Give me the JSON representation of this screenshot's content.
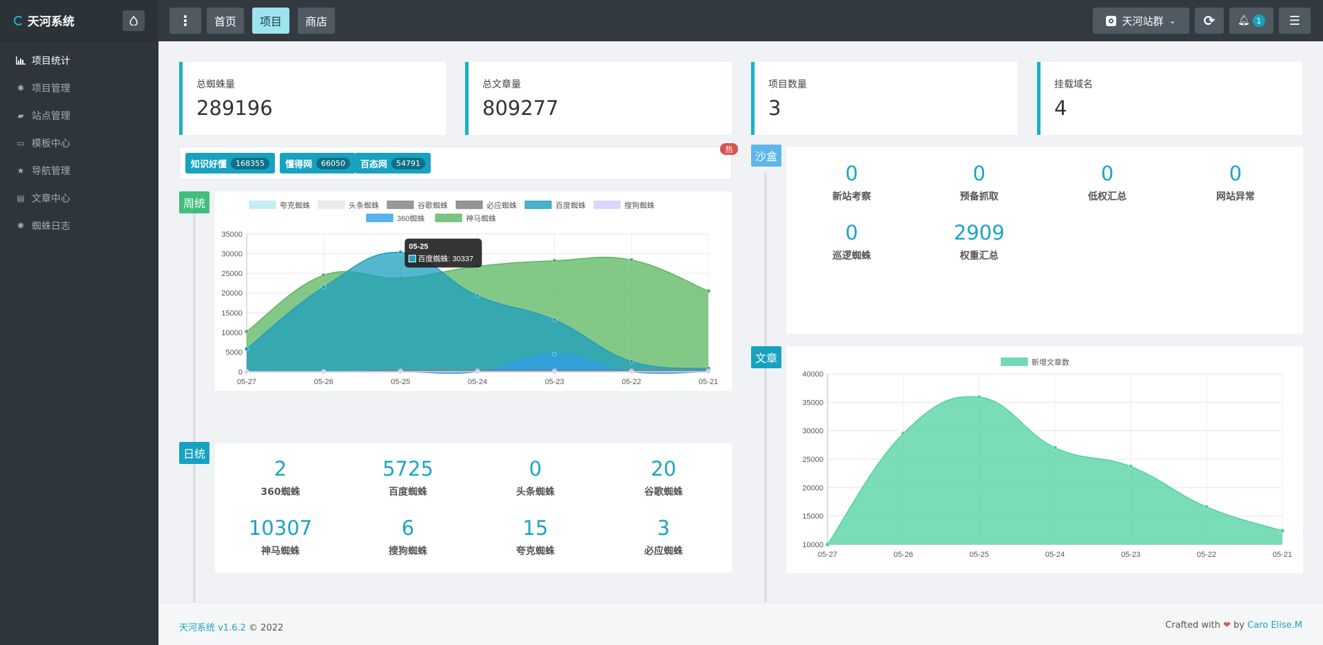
{
  "app": {
    "title": "天河系统"
  },
  "sidebar": {
    "items": [
      {
        "label": "项目统计",
        "icon": "bar-chart-icon",
        "active": true
      },
      {
        "label": "项目管理",
        "icon": "spider-icon"
      },
      {
        "label": "站点管理",
        "icon": "comments-icon"
      },
      {
        "label": "模板中心",
        "icon": "template-icon"
      },
      {
        "label": "导航管理",
        "icon": "star-icon"
      },
      {
        "label": "文章中心",
        "icon": "document-icon"
      },
      {
        "label": "蜘蛛日志",
        "icon": "bug-icon"
      }
    ]
  },
  "topbar": {
    "nav": [
      "首页",
      "项目",
      "商店"
    ],
    "site_group": "天河站群",
    "notify_count": "1"
  },
  "stats": [
    {
      "label": "总蜘蛛量",
      "value": "289196"
    },
    {
      "label": "总文章量",
      "value": "809277"
    },
    {
      "label": "项目数量",
      "value": "3"
    },
    {
      "label": "挂载域名",
      "value": "4"
    }
  ],
  "tags": [
    {
      "name": "知识好懂",
      "count": "168355"
    },
    {
      "name": "懂得网",
      "count": "66050"
    },
    {
      "name": "百态网",
      "count": "54791"
    }
  ],
  "hot_label": "热",
  "sections": {
    "weekly": "周统",
    "daily": "日统",
    "sandbox": "沙盒",
    "articles": "文章"
  },
  "sandbox": [
    {
      "label": "新站考察",
      "value": "0"
    },
    {
      "label": "预备抓取",
      "value": "0"
    },
    {
      "label": "低权汇总",
      "value": "0"
    },
    {
      "label": "网站异常",
      "value": "0"
    },
    {
      "label": "巡逻蜘蛛",
      "value": "0"
    },
    {
      "label": "权重汇总",
      "value": "2909"
    }
  ],
  "daily": [
    {
      "label": "360蜘蛛",
      "value": "2"
    },
    {
      "label": "百度蜘蛛",
      "value": "5725"
    },
    {
      "label": "头条蜘蛛",
      "value": "0"
    },
    {
      "label": "谷歌蜘蛛",
      "value": "20"
    },
    {
      "label": "神马蜘蛛",
      "value": "10307"
    },
    {
      "label": "搜狗蜘蛛",
      "value": "6"
    },
    {
      "label": "夸克蜘蛛",
      "value": "15"
    },
    {
      "label": "必应蜘蛛",
      "value": "3"
    }
  ],
  "chart_data": [
    {
      "type": "area",
      "x": [
        "05-27",
        "05-26",
        "05-25",
        "05-24",
        "05-23",
        "05-22",
        "05-21"
      ],
      "ylim": [
        0,
        35000
      ],
      "yticks": [
        0,
        5000,
        10000,
        15000,
        20000,
        25000,
        30000,
        35000
      ],
      "legend_position": "top",
      "grid": true,
      "series": [
        {
          "name": "夸克蜘蛛",
          "color": "#b9e9f1",
          "values": [
            0,
            0,
            0,
            0,
            0,
            0,
            0
          ]
        },
        {
          "name": "头条蜘蛛",
          "color": "#e4e6e8",
          "values": [
            0,
            0,
            0,
            0,
            0,
            0,
            0
          ]
        },
        {
          "name": "谷歌蜘蛛",
          "color": "#808080",
          "values": [
            0,
            0,
            300,
            300,
            300,
            300,
            300
          ]
        },
        {
          "name": "必应蜘蛛",
          "color": "#7a7a7a",
          "values": [
            0,
            0,
            0,
            0,
            0,
            0,
            0
          ]
        },
        {
          "name": "百度蜘蛛",
          "color": "#1c9fbd",
          "values": [
            5800,
            21500,
            30337,
            19300,
            13200,
            2600,
            800
          ]
        },
        {
          "name": "搜狗蜘蛛",
          "color": "#d6ccf7",
          "values": [
            0,
            0,
            0,
            0,
            0,
            0,
            0
          ]
        },
        {
          "name": "360蜘蛛",
          "color": "#2e9fe6",
          "values": [
            0,
            0,
            0,
            0,
            4500,
            0,
            0
          ]
        },
        {
          "name": "神马蜘蛛",
          "color": "#5bb55f",
          "values": [
            10200,
            24500,
            23800,
            26800,
            28200,
            28400,
            20500
          ]
        }
      ],
      "tooltip": {
        "x": "05-25",
        "series": "百度蜘蛛",
        "value": 30337
      }
    },
    {
      "type": "area",
      "x": [
        "05-27",
        "05-26",
        "05-25",
        "05-24",
        "05-23",
        "05-22",
        "05-21"
      ],
      "ylim": [
        10000,
        40000
      ],
      "yticks": [
        10000,
        15000,
        20000,
        25000,
        30000,
        35000,
        40000
      ],
      "legend_position": "top",
      "grid": true,
      "series": [
        {
          "name": "新增文章数",
          "color": "#4dd2a0",
          "values": [
            10000,
            29500,
            35900,
            27000,
            23700,
            16600,
            12400
          ]
        }
      ]
    }
  ],
  "footer": {
    "app": "天河系统 v1.6.2",
    "copyright": "© 2022",
    "crafted": "Crafted with",
    "by": "by",
    "author": "Caro Elise.M"
  }
}
